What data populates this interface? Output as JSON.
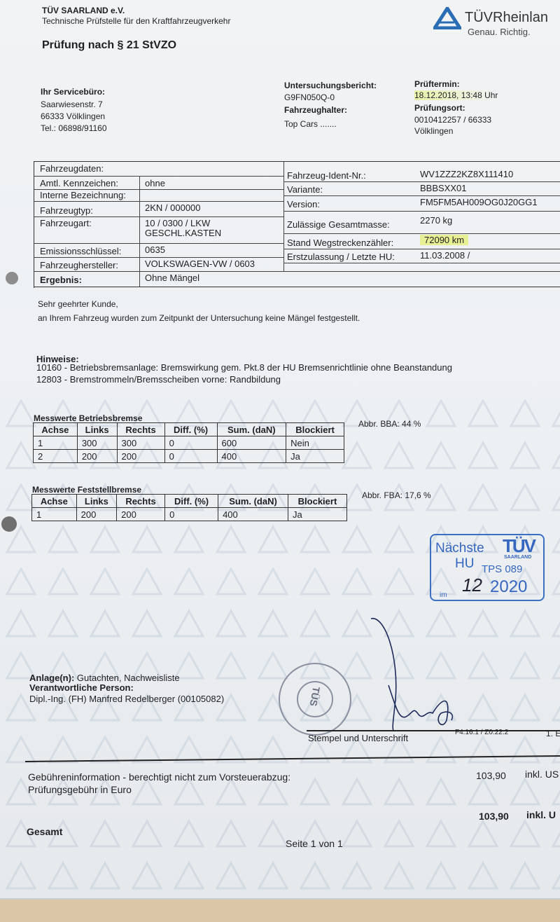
{
  "header": {
    "org": "TÜV SAARLAND e.V.",
    "org_sub": "Technische Prüfstelle für den Kraftfahrzeugverkehr",
    "title": "Prüfung nach § 21 StVZO",
    "logo_text": "TÜVRheinlan",
    "logo_slogan": "Genau. Richtig.",
    "logo_color": "#2a6db5"
  },
  "servicebuero": {
    "label": "Ihr Servicebüro:",
    "street": "Saarwiesenstr. 7",
    "city": "66333 Völklingen",
    "phone": "Tel.: 06898/91160"
  },
  "report": {
    "bericht_label": "Untersuchungsbericht:",
    "bericht_value": "G9FN050Q-0",
    "halter_label": "Fahrzeughalter:",
    "halter_value": "Top Cars .......",
    "termin_label": "Prüftermin:",
    "termin_value": "18.12.2018, 13:48 Uhr",
    "ort_label": "Prüfungsort:",
    "ort_value1": "0010412257 / 66333",
    "ort_value2": "Völklingen"
  },
  "vehicle": {
    "title": "Fahrzeugdaten:",
    "kennzeichen_label": "Amtl. Kennzeichen:",
    "kennzeichen": "ohne",
    "bezeichnung_label": "Interne Bezeichnung:",
    "typ_label": "Fahrzeugtyp:",
    "typ": "2KN / 000000",
    "art_label": "Fahrzeugart:",
    "art1": "10 / 0300 / LKW",
    "art2": "GESCHL.KASTEN",
    "emission_label": "Emissionsschlüssel:",
    "emission": "0635",
    "hersteller_label": "Fahrzeughersteller:",
    "hersteller": "VOLKSWAGEN-VW / 0603",
    "ergebnis_label": "Ergebnis:",
    "ergebnis": "Ohne Mängel",
    "ident_label": "Fahrzeug-Ident-Nr.:",
    "ident": "WV1ZZZ2KZ8X111410",
    "variante_label": "Variante:",
    "variante": "BBBSXX01",
    "version_label": "Version:",
    "version": "FM5FM5AH009OG0J20GG1",
    "masse_label": "Zulässige Gesamtmasse:",
    "masse": "2270 kg",
    "km_label": "Stand Wegstreckenzähler:",
    "km": "72090  km",
    "erstzulassung_label": "Erstzulassung / Letzte HU:",
    "erstzulassung": "11.03.2008 /"
  },
  "letter": {
    "greeting": "Sehr geehrter Kunde,",
    "text": "an Ihrem Fahrzeug wurden zum Zeitpunkt der Untersuchung keine Mängel festgestellt.",
    "hinweise_label": "Hinweise:",
    "hinweise": [
      "10160 - Betriebsbremsanlage: Bremswirkung gem. Pkt.8 der HU Bremsenrichtlinie ohne Beanstandung",
      "12803 - Bremstrommeln/Bremsscheiben vorne: Randbildung"
    ]
  },
  "betriebsbremse": {
    "title": "Messwerte Betriebsbremse",
    "headers": [
      "Achse",
      "Links",
      "Rechts",
      "Diff. (%)",
      "Sum. (daN)",
      "Blockiert"
    ],
    "rows": [
      [
        "1",
        "300",
        "300",
        "0",
        "600",
        "Nein"
      ],
      [
        "2",
        "200",
        "200",
        "0",
        "400",
        "Ja"
      ]
    ],
    "abbr": "Abbr. BBA: 44 %"
  },
  "feststellbremse": {
    "title": "Messwerte Feststellbremse",
    "headers": [
      "Achse",
      "Links",
      "Rechts",
      "Diff. (%)",
      "Sum. (daN)",
      "Blockiert"
    ],
    "rows": [
      [
        "1",
        "200",
        "200",
        "0",
        "400",
        "Ja"
      ]
    ],
    "abbr": "Abbr. FBA: 17,6 %"
  },
  "hu_stamp": {
    "line1": "Nächste",
    "line2": "HU",
    "brand": "TÜV",
    "brand_sub": "SAARLAND",
    "tps": "TPS 089",
    "im": "im",
    "month": "12",
    "year": "2020",
    "color": "#3566c0"
  },
  "signoff": {
    "anlage_label": "Anlage(n):",
    "anlage": "Gutachten, Nachweisliste",
    "person_label": "Verantwortliche Person:",
    "person": "Dipl.-Ing. (FH) Manfred Redelberger (00105082)",
    "seal_text": "Technische Überwachung Saarland 68 TÜS",
    "stempel": "Stempel und Unterschrift",
    "form_code": "F4.16.1 / Z0.22.2",
    "page_code": "1. E"
  },
  "fees": {
    "info": "Gebühreninformation - berechtigt nicht zum Vorsteuerabzug:",
    "pruefung_label": "Prüfungsgebühr in Euro",
    "pruefung_amount": "103,90",
    "pruefung_tax": "inkl. US",
    "gesamt_label": "Gesamt",
    "gesamt_amount": "103,90",
    "gesamt_tax": "inkl. U"
  },
  "footer": {
    "page": "Seite 1 von 1"
  }
}
